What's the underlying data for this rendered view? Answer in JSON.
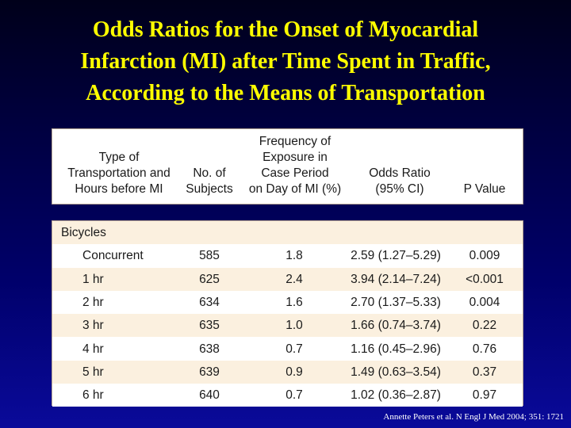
{
  "title": {
    "lines": [
      "Odds Ratios for the Onset of Myocardial",
      "Infarction (MI) after Time Spent in Traffic,",
      "According to the Means of Transportation"
    ]
  },
  "table": {
    "headers": {
      "type": "Type of\nTransportation and\nHours before MI",
      "subjects": "No. of\nSubjects",
      "frequency": "Frequency of\nExposure in\nCase Period\non Day of MI (%)",
      "odds_ratio": "Odds Ratio\n(95% CI)",
      "p_value": "P Value"
    },
    "group_label": "Bicycles",
    "rows": [
      {
        "type": "Concurrent",
        "subjects": "585",
        "frequency": "1.8",
        "odds_ratio": "2.59 (1.27–5.29)",
        "p_value": "0.009"
      },
      {
        "type": "1 hr",
        "subjects": "625",
        "frequency": "2.4",
        "odds_ratio": "3.94 (2.14–7.24)",
        "p_value": "<0.001"
      },
      {
        "type": "2 hr",
        "subjects": "634",
        "frequency": "1.6",
        "odds_ratio": "2.70 (1.37–5.33)",
        "p_value": "0.004"
      },
      {
        "type": "3 hr",
        "subjects": "635",
        "frequency": "1.0",
        "odds_ratio": "1.66 (0.74–3.74)",
        "p_value": "0.22"
      },
      {
        "type": "4 hr",
        "subjects": "638",
        "frequency": "0.7",
        "odds_ratio": "1.16 (0.45–2.96)",
        "p_value": "0.76"
      },
      {
        "type": "5 hr",
        "subjects": "639",
        "frequency": "0.9",
        "odds_ratio": "1.49 (0.63–3.54)",
        "p_value": "0.37"
      },
      {
        "type": "6 hr",
        "subjects": "640",
        "frequency": "0.7",
        "odds_ratio": "1.02 (0.36–2.87)",
        "p_value": "0.97"
      }
    ]
  },
  "citation": "Annette Peters et al. N Engl J Med 2004; 351: 1721",
  "colors": {
    "title": "#ffff00",
    "row_shade": "#fbf0df",
    "border": "#b7a693"
  }
}
